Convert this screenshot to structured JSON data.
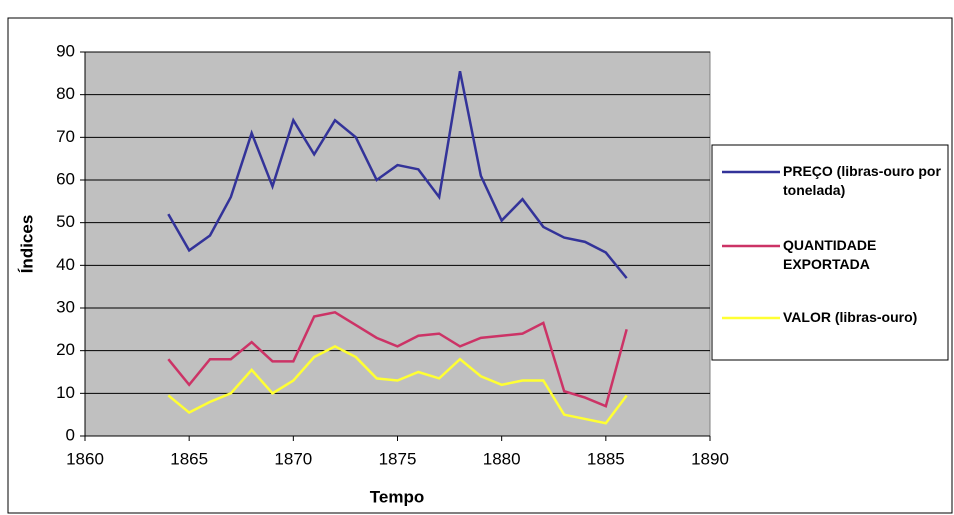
{
  "chart_data": {
    "type": "line",
    "x_label": "Tempo",
    "y_label": "Índices",
    "x": [
      1864,
      1865,
      1866,
      1867,
      1868,
      1869,
      1870,
      1871,
      1872,
      1873,
      1874,
      1875,
      1876,
      1877,
      1878,
      1879,
      1880,
      1881,
      1882,
      1883,
      1884,
      1885,
      1886
    ],
    "series": [
      {
        "name": "PREÇO (libras-ouro por tonelada)",
        "color": "#333399",
        "values": [
          52,
          43.5,
          47,
          56,
          71,
          58.5,
          74,
          66,
          74,
          70,
          60,
          63.5,
          62.5,
          56,
          85.5,
          61,
          50.5,
          55.5,
          49,
          46.5,
          45.5,
          43,
          37
        ]
      },
      {
        "name": "QUANTIDADE EXPORTADA",
        "color": "#cc3366",
        "values": [
          18,
          12,
          18,
          18,
          22,
          17.5,
          17.5,
          28,
          29,
          26,
          23,
          21,
          23.5,
          24,
          21,
          23,
          23.5,
          24,
          26.5,
          10.5,
          9,
          7,
          25
        ]
      },
      {
        "name": "VALOR (libras-ouro)",
        "color": "#ffff33",
        "values": [
          9.5,
          5.5,
          8,
          10,
          15.5,
          10,
          13,
          18.5,
          21,
          18.5,
          13.5,
          13,
          15,
          13.5,
          18,
          14,
          12,
          13,
          13,
          5,
          4,
          3,
          9.5
        ]
      }
    ],
    "xlim": [
      1860,
      1890
    ],
    "xticks": [
      1860,
      1865,
      1870,
      1875,
      1880,
      1885,
      1890
    ],
    "ylim": [
      0,
      90
    ],
    "yticks": [
      0,
      10,
      20,
      30,
      40,
      50,
      60,
      70,
      80,
      90
    ],
    "grid": true,
    "legend": "right"
  }
}
